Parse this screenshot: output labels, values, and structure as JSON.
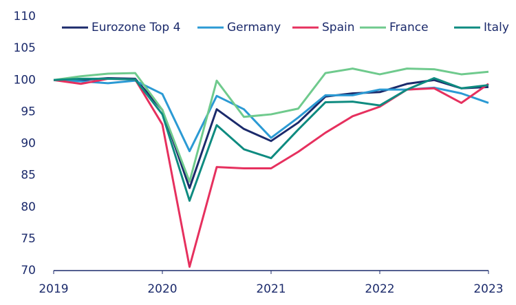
{
  "chart_data": {
    "type": "line",
    "x": [
      2019,
      2019.25,
      2019.5,
      2019.75,
      2020,
      2020.25,
      2020.5,
      2020.75,
      2021,
      2021.25,
      2021.5,
      2021.75,
      2022,
      2022.25,
      2022.5,
      2022.75,
      2023
    ],
    "series": [
      {
        "name": "Eurozone Top 4",
        "color": "#1b2a6b",
        "values": [
          100,
          100.0,
          100.3,
          100.2,
          95.3,
          83.0,
          95.4,
          92.3,
          90.4,
          93.3,
          97.4,
          97.9,
          98.1,
          99.4,
          100.0,
          98.7,
          98.9
        ]
      },
      {
        "name": "Germany",
        "color": "#2b9ad4",
        "values": [
          100,
          99.8,
          99.5,
          99.9,
          97.8,
          88.8,
          97.5,
          95.4,
          90.9,
          94.1,
          97.6,
          97.6,
          98.5,
          98.5,
          98.8,
          97.9,
          96.4
        ]
      },
      {
        "name": "Spain",
        "color": "#e6305e",
        "values": [
          100,
          99.4,
          100.2,
          100.1,
          93.0,
          70.6,
          86.3,
          86.1,
          86.1,
          88.7,
          91.7,
          94.3,
          95.8,
          98.5,
          98.7,
          96.4,
          99.4
        ]
      },
      {
        "name": "France",
        "color": "#6fca8d",
        "values": [
          100,
          100.6,
          101.0,
          101.1,
          95.3,
          84.0,
          99.9,
          94.2,
          94.6,
          95.5,
          101.1,
          101.8,
          100.9,
          101.8,
          101.7,
          100.9,
          101.3
        ]
      },
      {
        "name": "Italy",
        "color": "#0e8b80",
        "values": [
          100,
          100.2,
          100.2,
          100.1,
          94.6,
          81.0,
          92.9,
          89.1,
          87.7,
          92.2,
          96.5,
          96.6,
          96.0,
          98.5,
          100.3,
          98.7,
          99.2
        ]
      }
    ],
    "xlim": [
      2019,
      2023
    ],
    "xticks": [
      2019,
      2020,
      2021,
      2022,
      2023
    ],
    "ylim": [
      70,
      110
    ],
    "yticks": [
      70,
      75,
      80,
      85,
      90,
      95,
      100,
      105,
      110
    ],
    "grid": false,
    "legend": "top"
  }
}
